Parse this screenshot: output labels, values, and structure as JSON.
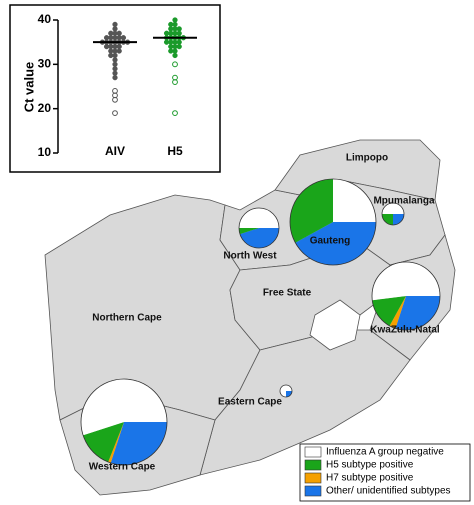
{
  "chart_data": [
    {
      "type": "strip",
      "ylabel": "Ct value",
      "categories": [
        "AIV",
        "H5"
      ],
      "ylim": [
        10,
        40
      ],
      "yticks": [
        10,
        20,
        30,
        40
      ],
      "series": [
        {
          "color": "#555555",
          "mean": 35,
          "values": [
            39,
            38,
            37,
            37,
            37,
            36,
            36,
            36,
            36,
            36,
            35,
            35,
            35,
            35,
            35,
            35,
            35,
            34,
            34,
            34,
            34,
            33,
            33,
            33,
            32,
            32,
            31,
            30,
            29,
            28,
            27,
            24,
            23,
            22,
            19
          ]
        },
        {
          "color": "#1a9a2a",
          "mean": 36,
          "values": [
            40,
            39,
            39,
            38,
            38,
            38,
            37,
            37,
            37,
            37,
            36,
            36,
            36,
            36,
            36,
            35,
            35,
            35,
            35,
            34,
            34,
            34,
            33,
            33,
            32,
            30,
            27,
            26,
            19
          ]
        }
      ]
    },
    {
      "type": "pie",
      "series": [
        {
          "name": "Influenza A group negative",
          "color": "#ffffff"
        },
        {
          "name": "H5 subtype positive",
          "color": "#1aa51a"
        },
        {
          "name": "H7 subtype positive",
          "color": "#f5a000"
        },
        {
          "name": "Other/ unidentified subtypes",
          "color": "#1a75e8"
        }
      ],
      "regions": [
        {
          "name": "Limpopo"
        },
        {
          "name": "Mpumalanga",
          "values": [
            50,
            25,
            0,
            25
          ]
        },
        {
          "name": "Gauteng",
          "values": [
            25,
            33,
            0,
            42
          ]
        },
        {
          "name": "North West",
          "values": [
            50,
            5,
            0,
            45
          ]
        },
        {
          "name": "Free State"
        },
        {
          "name": "Northern Cape"
        },
        {
          "name": "KwaZulu-Natal",
          "values": [
            52,
            15,
            3,
            30
          ]
        },
        {
          "name": "Eastern Cape",
          "values": [
            75,
            0,
            0,
            25
          ]
        },
        {
          "name": "Western Cape",
          "values": [
            55,
            14,
            1,
            30
          ]
        }
      ]
    }
  ]
}
